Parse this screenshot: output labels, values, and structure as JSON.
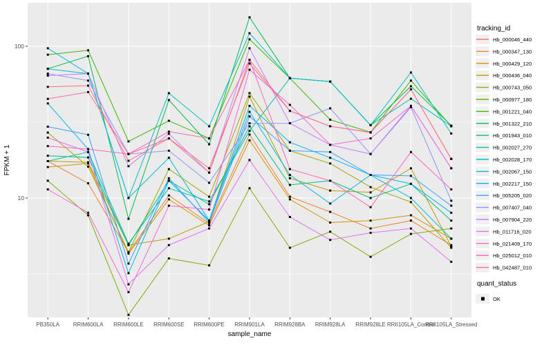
{
  "chart_data": {
    "type": "line",
    "title": "",
    "xlabel": "sample_name",
    "ylabel": "FPKM + 1",
    "y_scale": "log10",
    "ylim": [
      1.7,
      193
    ],
    "y_major_ticks": [
      10,
      100
    ],
    "y_minor_ticks": [
      3.162,
      31.62
    ],
    "grid": true,
    "categories": [
      "PB350LA",
      "RRIM600LA",
      "RRIM600LE",
      "RRIM600SE",
      "RRIM600PE",
      "RRIM901LA",
      "RRIM928BA",
      "RRIM928LA",
      "RRIM928LE",
      "RRII105LA_Control",
      "RRII105LA_Stressed"
    ],
    "legend": {
      "title": "tracking_id",
      "position": "right"
    },
    "quant_legend": {
      "title": "quant_status",
      "items": [
        {
          "label": "OK",
          "marker": "black-square"
        }
      ]
    },
    "marker": {
      "shape": "square",
      "color": "#000000",
      "size": 3
    },
    "colors": {
      "panel_bg": "#EBEBEB",
      "grid": "#FFFFFF",
      "tick_text": "#4D4D4D",
      "title_text": "#000000",
      "legend_key_bg": "#F0F0F0"
    },
    "series": [
      {
        "name": "Hb_000046_440",
        "color": "#F8766D",
        "values": [
          54,
          55,
          17.6,
          24.7,
          15.7,
          77,
          37.5,
          29.7,
          27,
          52,
          18.1
        ]
      },
      {
        "name": "Hb_000347_130",
        "color": "#EA8331",
        "values": [
          17.5,
          12.5,
          4.4,
          10.4,
          6.8,
          26.2,
          10.2,
          8.1,
          6.3,
          7.1,
          4.9
        ]
      },
      {
        "name": "Hb_000429_120",
        "color": "#D89000",
        "values": [
          16,
          16.9,
          4.3,
          9.8,
          6.6,
          24,
          9.8,
          6.9,
          7.1,
          7.7,
          5.4
        ]
      },
      {
        "name": "Hb_000436_040",
        "color": "#C09B00",
        "values": [
          17.5,
          17.2,
          4.9,
          5.4,
          7,
          46.6,
          13.5,
          11.2,
          10.9,
          15.7,
          4.8
        ]
      },
      {
        "name": "Hb_000743_050",
        "color": "#A3A500",
        "values": [
          27,
          16.1,
          4.4,
          15.5,
          10.2,
          49.1,
          20.5,
          16.9,
          11.8,
          9.4,
          4.7
        ]
      },
      {
        "name": "Hb_000977_180",
        "color": "#7CAE00",
        "values": [
          13,
          7.7,
          1.7,
          4,
          3.6,
          11.6,
          4.7,
          6,
          4.1,
          5.8,
          6.3
        ]
      },
      {
        "name": "Hb_001221_040",
        "color": "#39B600",
        "values": [
          88,
          94,
          23.6,
          32.3,
          24.7,
          111,
          61.6,
          32.8,
          27.1,
          59.4,
          29.7
        ]
      },
      {
        "name": "Hb_001322_210",
        "color": "#00BB4E",
        "values": [
          71,
          86,
          7.3,
          44.2,
          22.6,
          155,
          61.6,
          58.5,
          30.2,
          54.5,
          30
        ]
      },
      {
        "name": "Hb_001943_010",
        "color": "#00BF7D",
        "values": [
          19,
          18.5,
          4.9,
          13,
          9.1,
          29.7,
          12.2,
          13,
          10,
          12.4,
          7.1
        ]
      },
      {
        "name": "Hb_002027_270",
        "color": "#00C1A3",
        "values": [
          17.5,
          20.1,
          5,
          11.6,
          9.5,
          27.7,
          61.6,
          58.5,
          30.2,
          45.1,
          29.7
        ]
      },
      {
        "name": "Hb_002028_170",
        "color": "#00BFC4",
        "values": [
          71,
          66,
          10,
          49.1,
          29.7,
          121.7,
          61.6,
          58.5,
          30.2,
          67.2,
          26.6
        ]
      },
      {
        "name": "Hb_002067_150",
        "color": "#00BAE0",
        "values": [
          97,
          66,
          10,
          18.4,
          7.1,
          37,
          14.2,
          9.2,
          14.2,
          10,
          5.4
        ]
      },
      {
        "name": "Hb_002217_150",
        "color": "#00B0F6",
        "values": [
          42,
          21,
          3.2,
          13,
          7.1,
          40.5,
          23.3,
          18.4,
          14.2,
          12.4,
          8
        ]
      },
      {
        "name": "Hb_005205_020",
        "color": "#35A2FF",
        "values": [
          29.5,
          26.1,
          3.7,
          13.5,
          6.9,
          34.5,
          20.5,
          20.1,
          14.2,
          14,
          8.9
        ]
      },
      {
        "name": "Hb_007407_040",
        "color": "#9590FF",
        "values": [
          66,
          59.4,
          19.5,
          20.5,
          12.6,
          31.1,
          31.1,
          39,
          19.5,
          39.7,
          9.6
        ]
      },
      {
        "name": "Hb_007904_220",
        "color": "#C77CFF",
        "values": [
          64,
          66,
          16.2,
          26.5,
          14.7,
          96.9,
          31.1,
          22.4,
          19.5,
          40.5,
          15.7
        ]
      },
      {
        "name": "Hb_011716_020",
        "color": "#E76BF3",
        "values": [
          25,
          20.1,
          2.7,
          4.9,
          6.3,
          17.8,
          7.5,
          5.3,
          5.9,
          6.3,
          3.8
        ]
      },
      {
        "name": "Hb_021409_170",
        "color": "#FA62DB",
        "values": [
          11.4,
          8,
          2.4,
          8.9,
          8.4,
          70,
          41.1,
          22.4,
          24.7,
          40.5,
          15.7
        ]
      },
      {
        "name": "Hb_025012_010",
        "color": "#FF62BC",
        "values": [
          22,
          21,
          19.5,
          27.4,
          24.7,
          81.3,
          15.5,
          13,
          8.7,
          20.1,
          11.4
        ]
      },
      {
        "name": "Hb_042487_010",
        "color": "#FF6A98",
        "values": [
          45,
          49.9,
          19.5,
          24.7,
          14.7,
          81.3,
          37.5,
          29.7,
          27.1,
          52,
          18.1
        ]
      }
    ]
  }
}
